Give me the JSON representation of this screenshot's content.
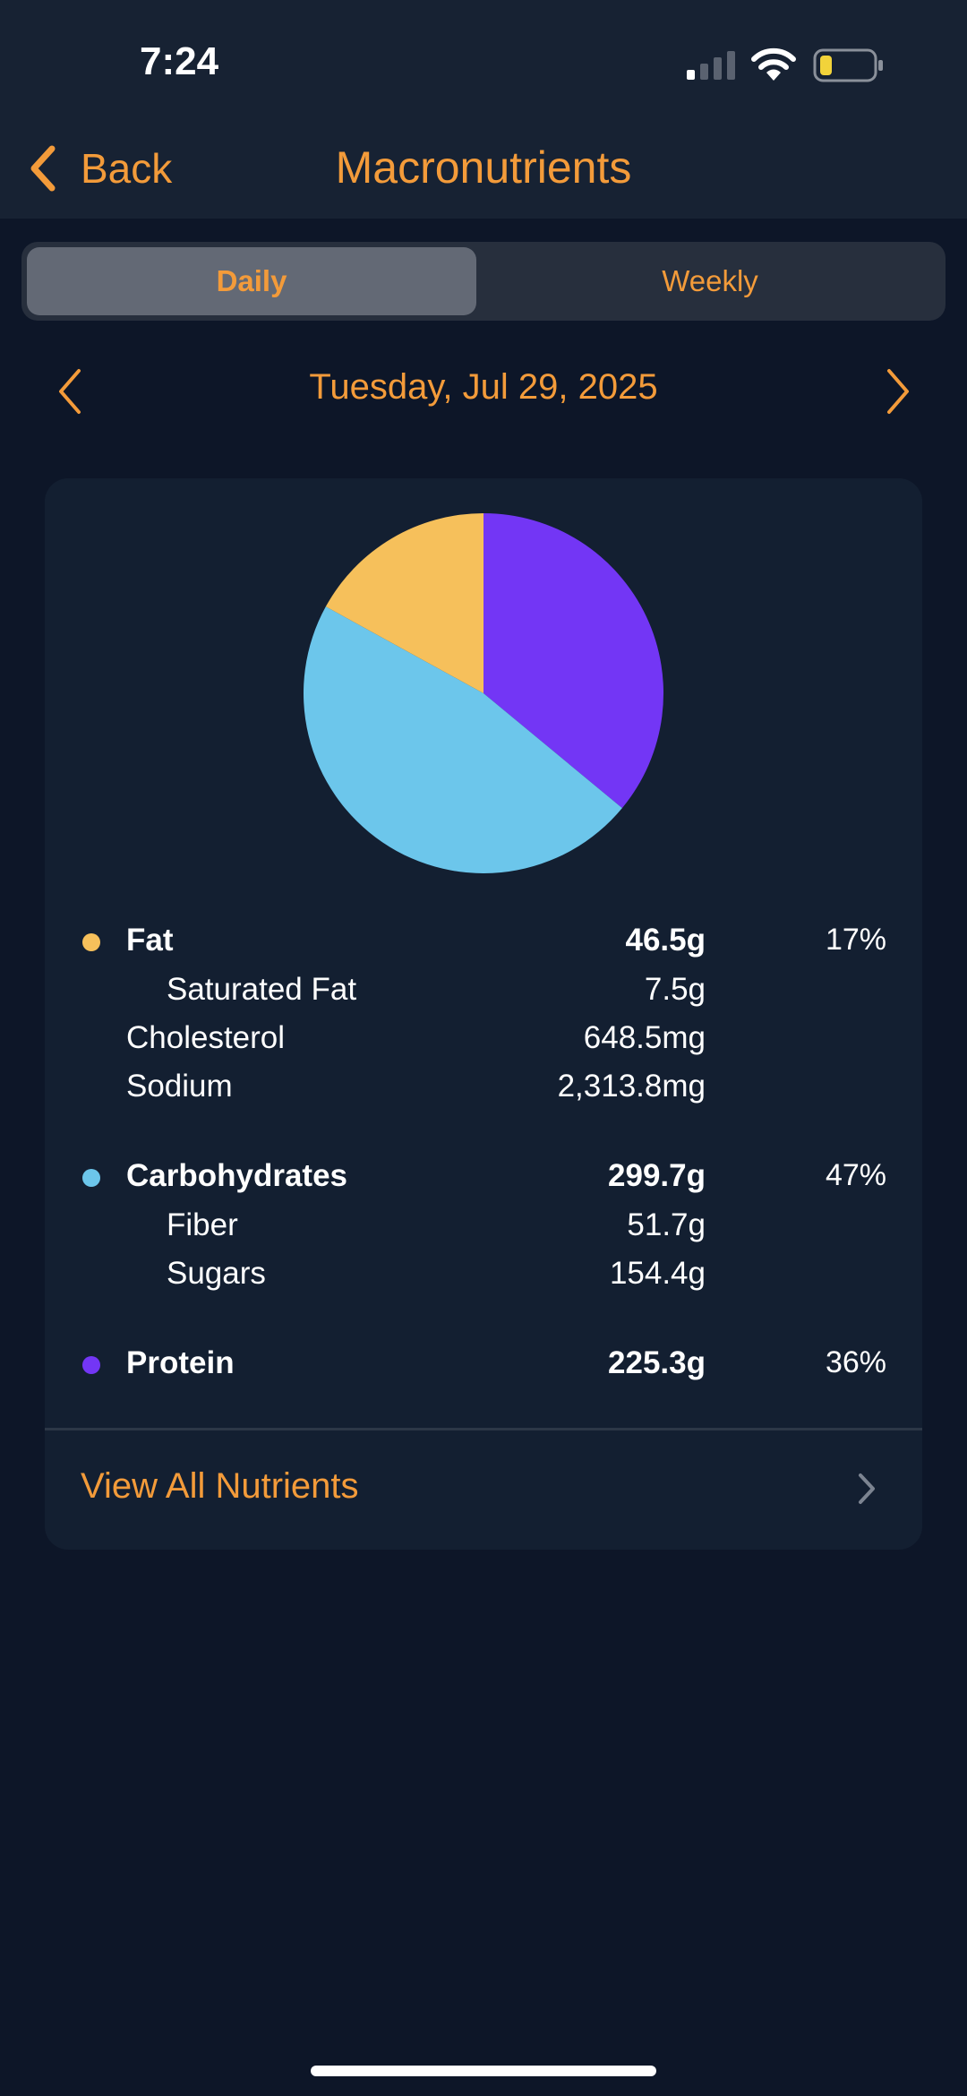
{
  "status_bar": {
    "time": "7:24"
  },
  "nav": {
    "back_label": "Back",
    "title": "Macronutrients"
  },
  "tabs": [
    {
      "label": "Daily",
      "selected": true
    },
    {
      "label": "Weekly",
      "selected": false
    }
  ],
  "date": {
    "label": "Tuesday, Jul 29, 2025"
  },
  "colors": {
    "accent": "#f39b3a",
    "fat": "#f6c05b",
    "carbohydrates": "#6cc6eb",
    "protein": "#7336f5"
  },
  "chart_data": {
    "type": "pie",
    "slices": [
      {
        "label": "Protein",
        "value": 36,
        "color": "#7336f5"
      },
      {
        "label": "Carbohydrates",
        "value": 47,
        "color": "#6cc6eb"
      },
      {
        "label": "Fat",
        "value": 17,
        "color": "#f6c05b"
      }
    ]
  },
  "nutrients": {
    "fat": {
      "label": "Fat",
      "value": "46.5g",
      "percent": "17%"
    },
    "saturated_fat": {
      "label": "Saturated Fat",
      "value": "7.5g"
    },
    "cholesterol": {
      "label": "Cholesterol",
      "value": "648.5mg"
    },
    "sodium": {
      "label": "Sodium",
      "value": "2,313.8mg"
    },
    "carbohydrates": {
      "label": "Carbohydrates",
      "value": "299.7g",
      "percent": "47%"
    },
    "fiber": {
      "label": "Fiber",
      "value": "51.7g"
    },
    "sugars": {
      "label": "Sugars",
      "value": "154.4g"
    },
    "protein": {
      "label": "Protein",
      "value": "225.3g",
      "percent": "36%"
    }
  },
  "footer": {
    "view_all_label": "View All Nutrients"
  }
}
